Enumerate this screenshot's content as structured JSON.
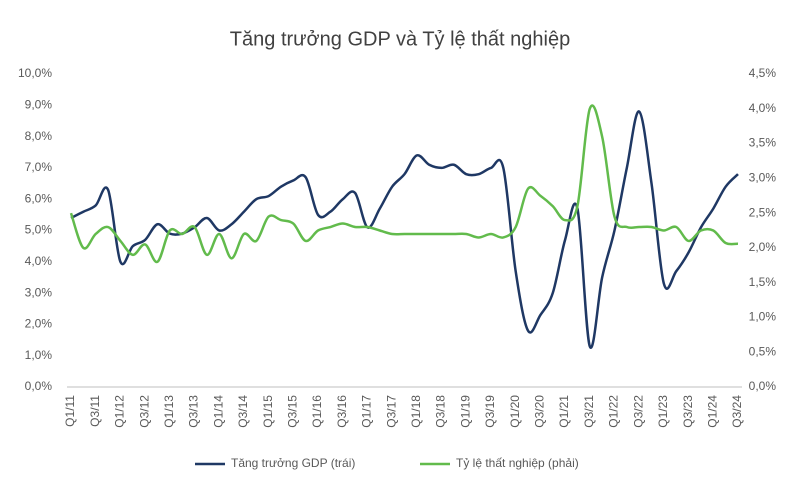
{
  "chart_data": {
    "type": "line",
    "title": "Tăng trưởng GDP và Tỷ lệ thất nghiệp",
    "categories": [
      "Q1/11",
      null,
      "Q3/11",
      null,
      "Q1/12",
      null,
      "Q3/12",
      null,
      "Q1/13",
      null,
      "Q3/13",
      null,
      "Q1/14",
      null,
      "Q3/14",
      null,
      "Q1/15",
      null,
      "Q3/15",
      null,
      "Q1/16",
      null,
      "Q3/16",
      null,
      "Q1/17",
      null,
      "Q3/17",
      null,
      "Q1/18",
      null,
      "Q3/18",
      null,
      "Q1/19",
      null,
      "Q3/19",
      null,
      "Q1/20",
      null,
      "Q3/20",
      null,
      "Q1/21",
      null,
      "Q3/21",
      null,
      "Q1/22",
      null,
      "Q3/22",
      null,
      "Q1/23",
      null,
      "Q3/23",
      null,
      "Q1/24",
      null,
      "Q3/24"
    ],
    "series": [
      {
        "name": "Tăng trưởng GDP (trái)",
        "color": "#1f3864",
        "axis": "y",
        "values": [
          5.4,
          5.6,
          5.8,
          6.3,
          4.0,
          4.5,
          4.7,
          5.2,
          4.9,
          4.9,
          5.1,
          5.4,
          5.0,
          5.2,
          5.6,
          6.0,
          6.1,
          6.4,
          6.6,
          6.7,
          5.5,
          5.6,
          6.0,
          6.2,
          5.1,
          5.7,
          6.4,
          6.8,
          7.4,
          7.1,
          7.0,
          7.1,
          6.8,
          6.8,
          7.0,
          7.0,
          3.7,
          1.8,
          2.3,
          3.0,
          4.7,
          5.7,
          1.3,
          3.5,
          5.0,
          7.0,
          8.8,
          6.5,
          3.3,
          3.7,
          4.3,
          5.1,
          5.7,
          6.4,
          6.8
        ]
      },
      {
        "name": "Tỷ lệ thất nghiệp (phải)",
        "color": "#62bb4c",
        "axis": "y2",
        "values": [
          2.5,
          2.0,
          2.2,
          2.3,
          2.1,
          1.9,
          2.05,
          1.8,
          2.25,
          2.2,
          2.3,
          1.9,
          2.2,
          1.85,
          2.2,
          2.1,
          2.45,
          2.4,
          2.35,
          2.1,
          2.25,
          2.3,
          2.35,
          2.3,
          2.3,
          2.25,
          2.2,
          2.2,
          2.2,
          2.2,
          2.2,
          2.2,
          2.2,
          2.15,
          2.2,
          2.15,
          2.3,
          2.85,
          2.75,
          2.6,
          2.4,
          2.6,
          4.0,
          3.6,
          2.45,
          2.3,
          2.3,
          2.3,
          2.25,
          2.3,
          2.1,
          2.25,
          2.25,
          2.07,
          2.06
        ]
      }
    ],
    "ylim": [
      0,
      10
    ],
    "yticks": [
      {
        "value": 0,
        "label": "0,0%"
      },
      {
        "value": 1,
        "label": "1,0%"
      },
      {
        "value": 2,
        "label": "2,0%"
      },
      {
        "value": 3,
        "label": "3,0%"
      },
      {
        "value": 4,
        "label": "4,0%"
      },
      {
        "value": 5,
        "label": "5,0%"
      },
      {
        "value": 6,
        "label": "6,0%"
      },
      {
        "value": 7,
        "label": "7,0%"
      },
      {
        "value": 8,
        "label": "8,0%"
      },
      {
        "value": 9,
        "label": "9,0%"
      },
      {
        "value": 10,
        "label": "10,0%"
      }
    ],
    "y2lim": [
      0,
      4.5
    ],
    "y2ticks": [
      {
        "value": 0,
        "label": "0,0%"
      },
      {
        "value": 0.5,
        "label": "0,5%"
      },
      {
        "value": 1,
        "label": "1,0%"
      },
      {
        "value": 1.5,
        "label": "1,5%"
      },
      {
        "value": 2,
        "label": "2,0%"
      },
      {
        "value": 2.5,
        "label": "2,5%"
      },
      {
        "value": 3,
        "label": "3,0%"
      },
      {
        "value": 3.5,
        "label": "3,5%"
      },
      {
        "value": 4,
        "label": "4,0%"
      },
      {
        "value": 4.5,
        "label": "4,5%"
      }
    ],
    "grid": false,
    "legend": "bottom"
  }
}
